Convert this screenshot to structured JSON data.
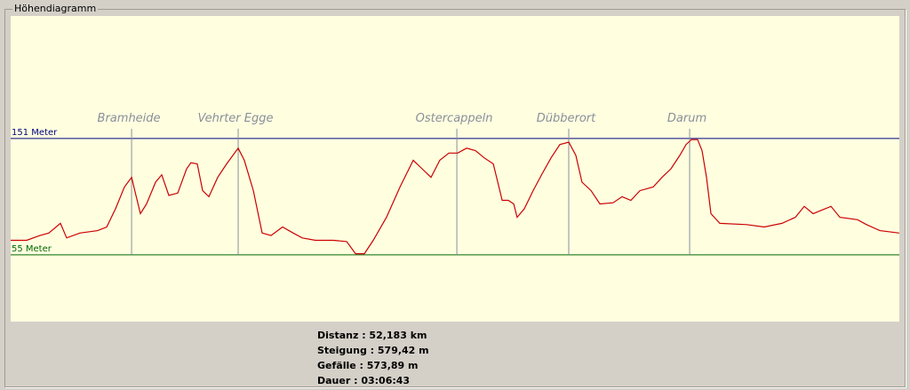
{
  "window": {
    "title": "Höhendiagramm"
  },
  "chart_data": {
    "type": "line",
    "color": "#cc0000",
    "xlim": [
      0,
      52.183
    ],
    "ylim": [
      0,
      252
    ],
    "x": [
      0,
      0.94,
      1.72,
      2.24,
      2.92,
      3.29,
      4.07,
      5.11,
      5.64,
      6.16,
      6.68,
      7.1,
      7.36,
      7.62,
      7.98,
      8.51,
      8.87,
      9.29,
      9.81,
      10.33,
      10.59,
      10.96,
      11.27,
      11.64,
      12.16,
      12.68,
      13.36,
      13.72,
      14.25,
      14.77,
      15.29,
      15.97,
      16.59,
      17.12,
      17.9,
      18.94,
      19.73,
      20.25,
      20.77,
      21.29,
      22.07,
      22.86,
      23.64,
      24.16,
      24.68,
      25.2,
      25.73,
      26.25,
      26.77,
      27.29,
      27.81,
      28.34,
      28.86,
      29.22,
      29.54,
      29.74,
      30.16,
      30.68,
      31.21,
      31.73,
      32.25,
      32.77,
      33.19,
      33.55,
      34.08,
      34.6,
      35.38,
      35.9,
      36.42,
      36.95,
      37.73,
      38.25,
      38.77,
      39.29,
      39.66,
      39.97,
      40.34,
      40.6,
      40.86,
      41.12,
      41.64,
      43.21,
      44.25,
      45.29,
      46.08,
      46.6,
      47.12,
      47.64,
      48.17,
      48.69,
      49.73,
      50.25,
      51.04,
      52.18
    ],
    "values": [
      67,
      67,
      71,
      73,
      81,
      69,
      73,
      75,
      78,
      93,
      111,
      119,
      104,
      89,
      97,
      115,
      121,
      104,
      106,
      126,
      131,
      130,
      108,
      103,
      119,
      130,
      143,
      133,
      108,
      73,
      71,
      78,
      73,
      69,
      67,
      67,
      66,
      56,
      56,
      67,
      86,
      111,
      133,
      126,
      119,
      133,
      139,
      139,
      143,
      141,
      135,
      130,
      100,
      100,
      97,
      86,
      93,
      108,
      122,
      135,
      146,
      148,
      137,
      115,
      108,
      97,
      98,
      103,
      100,
      108,
      111,
      119,
      126,
      137,
      146,
      150,
      150,
      141,
      119,
      89,
      81,
      80,
      78,
      81,
      86,
      95,
      89,
      92,
      95,
      86,
      84,
      80,
      75,
      73
    ],
    "ref_lines": [
      {
        "value": 151,
        "label": "151 Meter",
        "color": "#000080"
      },
      {
        "value": 55,
        "label": "55 Meter",
        "color": "#006600"
      }
    ],
    "places": [
      {
        "name": "Bramheide",
        "x": 7.1
      },
      {
        "name": "Vehrter Egge",
        "x": 13.36
      },
      {
        "name": "Ostercappeln",
        "x": 26.2
      },
      {
        "name": "Dübberort",
        "x": 32.77
      },
      {
        "name": "Darum",
        "x": 39.87
      }
    ]
  },
  "stats": [
    "Distanz : 52,183 km",
    "Steigung : 579,42 m",
    "Gefälle : 573,89 m",
    "Dauer : 03:06:43"
  ]
}
